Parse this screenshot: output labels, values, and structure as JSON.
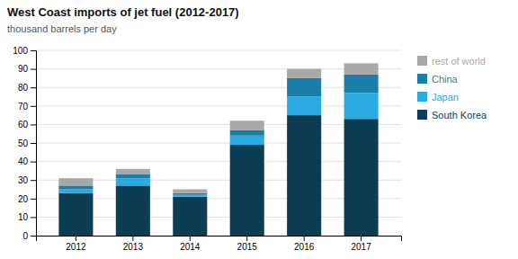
{
  "chart_data": {
    "type": "bar",
    "stacked": true,
    "title": "West Coast imports of jet fuel (2012-2017)",
    "subtitle": "thousand barrels per day",
    "categories": [
      "2012",
      "2013",
      "2014",
      "2015",
      "2016",
      "2017"
    ],
    "series": [
      {
        "name": "South Korea",
        "color": "#0d3d52",
        "values": [
          23,
          27,
          21,
          49,
          65,
          63
        ]
      },
      {
        "name": "Japan",
        "color": "#29abe2",
        "values": [
          2,
          4,
          1,
          5,
          10,
          14
        ]
      },
      {
        "name": "China",
        "color": "#1a7fa8",
        "values": [
          2,
          2,
          1,
          3,
          10,
          10
        ]
      },
      {
        "name": "rest of world",
        "color": "#a8a8a8",
        "values": [
          4,
          3,
          2,
          5,
          5,
          6
        ]
      }
    ],
    "ylim": [
      0,
      100
    ],
    "yticks": [
      0,
      10,
      20,
      30,
      40,
      50,
      60,
      70,
      80,
      90,
      100
    ],
    "grid": true,
    "legend": "right"
  }
}
